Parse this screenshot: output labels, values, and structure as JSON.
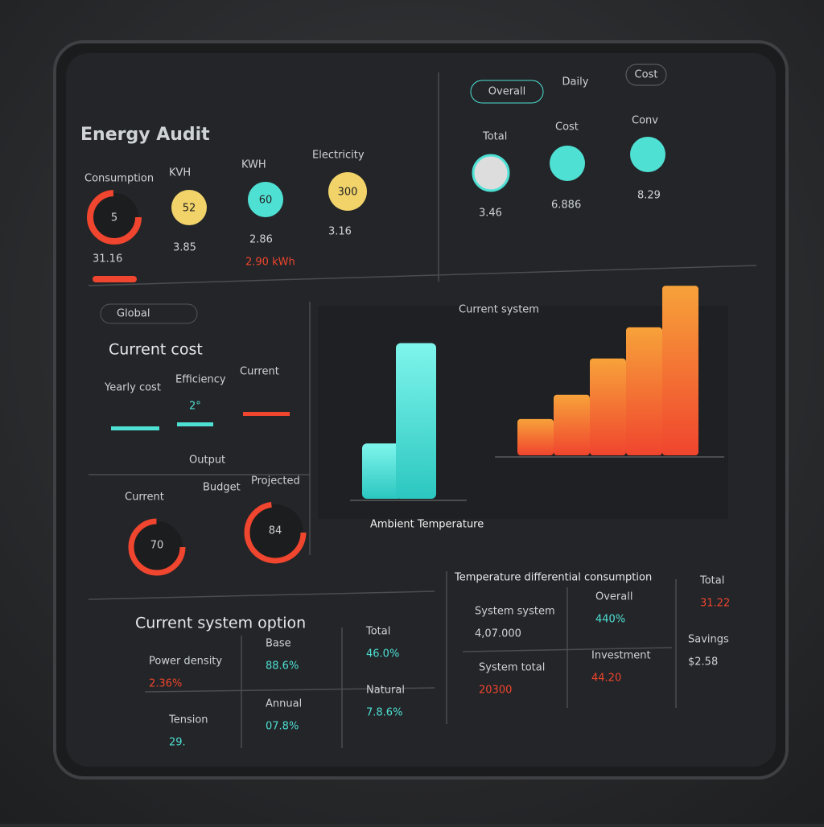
{
  "header": {
    "title": "Energy Audit",
    "tabs": [
      "Overall",
      "Daily",
      "Cost"
    ]
  },
  "top_metrics": [
    {
      "label": "Consumption",
      "gauge": "5",
      "reading": "31.16"
    },
    {
      "label": "KVH",
      "gauge": "52",
      "reading": "3.85"
    },
    {
      "label": "KWH",
      "gauge": "60",
      "reading": "2.86",
      "note": "2.90 kWh"
    },
    {
      "label": "Electricity",
      "gauge": "300",
      "reading": "3.16"
    }
  ],
  "side_metrics": [
    {
      "label": "Total",
      "reading": "3.46"
    },
    {
      "label": "Cost",
      "reading": "6.886"
    },
    {
      "label": "Conv",
      "reading": "8.29"
    }
  ],
  "search": "Global",
  "current_cost": {
    "title": "Current cost",
    "labels": [
      "Yearly cost",
      "Efficiency",
      "Current"
    ],
    "mid_value": "2°",
    "sub": "Output",
    "gauge_labels": [
      "Current",
      "Budget",
      "Projected"
    ],
    "gauges": [
      "70",
      "84"
    ]
  },
  "chart": {
    "title": "Current system",
    "axis_label": "Ambient Temperature",
    "ambient_values": [
      32,
      90
    ],
    "system_values": [
      21,
      35,
      56,
      74,
      98
    ]
  },
  "system_option": {
    "title": "Current system option",
    "cells": [
      {
        "label": "Power density",
        "value": "2.36%"
      },
      {
        "label": "Base",
        "value": "88.6%"
      },
      {
        "label": "Total",
        "value": "46.0%"
      },
      {
        "label": "Tension",
        "value": "29."
      },
      {
        "label": "Annual",
        "value": "07.8%"
      },
      {
        "label": "Natural",
        "value": "7.8.6%"
      }
    ]
  },
  "differential": {
    "title": "Temperature differential consumption",
    "cells": [
      {
        "label": "System system",
        "value": "4,07.000"
      },
      {
        "label": "Overall",
        "value": "440%"
      },
      {
        "label": "Total",
        "value": "31.22"
      },
      {
        "label": "System total",
        "value": "20300"
      },
      {
        "label": "Investment",
        "value": "44.20"
      },
      {
        "label": "Savings",
        "value": "$2.58"
      }
    ]
  }
}
